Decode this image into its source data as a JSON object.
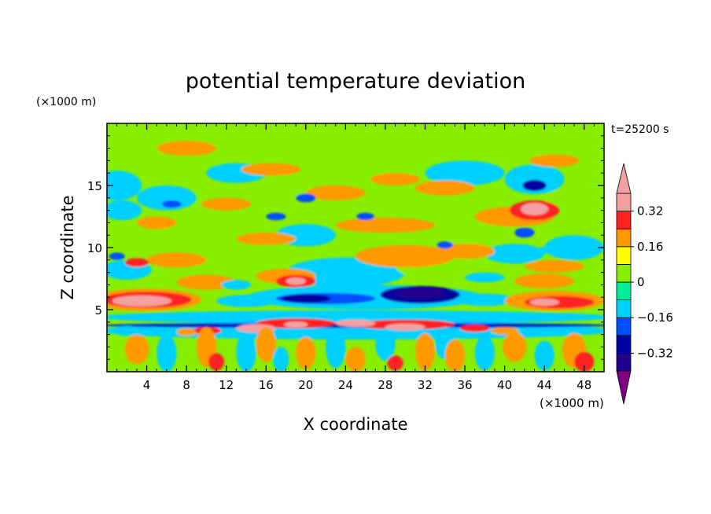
{
  "chart_data": {
    "type": "heatmap",
    "title": "potential temperature deviation",
    "xlabel": "X coordinate",
    "ylabel": "Z coordinate",
    "x_unit": "(×1000 m)",
    "y_unit": "(×1000 m)",
    "time_label": "t=25200 s",
    "xlim": [
      0,
      50
    ],
    "ylim": [
      0,
      20
    ],
    "x_ticks": [
      4,
      8,
      12,
      16,
      20,
      24,
      28,
      32,
      36,
      40,
      44,
      48
    ],
    "y_ticks": [
      5,
      10,
      15
    ],
    "colorbar": {
      "levels": [
        -0.4,
        -0.32,
        -0.24,
        -0.16,
        -0.08,
        0,
        0.08,
        0.16,
        0.24,
        0.32,
        0.4
      ],
      "tick_values": [
        0.32,
        0.16,
        0,
        -0.16,
        -0.32
      ],
      "tick_labels": [
        "0.32",
        "0.16",
        "0",
        "−0.16",
        "−0.32"
      ],
      "colors": [
        "#800080",
        "#200090",
        "#0000a0",
        "#0050ff",
        "#00d0ff",
        "#00ee99",
        "#88ee00",
        "#ffff00",
        "#ff9900",
        "#ff2020",
        "#f4a0a0"
      ]
    },
    "features": [
      {
        "x": 4,
        "z": 5.8,
        "value": 0.4
      },
      {
        "x": 44,
        "z": 5.7,
        "value": 0.32
      },
      {
        "x": 20,
        "z": 5.9,
        "value": -0.32
      },
      {
        "x": 31,
        "z": 6.3,
        "value": -0.4
      },
      {
        "x": 43,
        "z": 13,
        "value": 0.32
      },
      {
        "x": 43,
        "z": 15,
        "value": -0.32
      },
      {
        "x": 19,
        "z": 3.8,
        "value": 0.4
      },
      {
        "x": 30,
        "z": 3.6,
        "value": 0.4
      }
    ]
  }
}
